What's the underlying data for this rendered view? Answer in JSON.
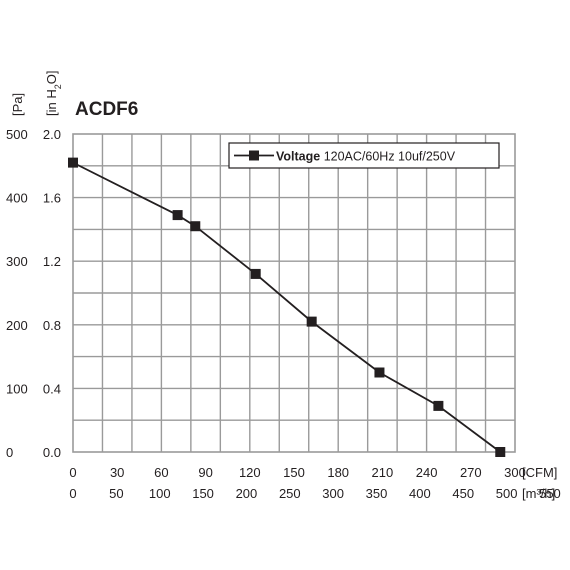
{
  "chart_data": {
    "type": "line",
    "title": "ACDF6",
    "y_units": {
      "primary": "[Pa]",
      "secondary": "[in H",
      "secondary_sub": "2",
      "secondary_end": "O]"
    },
    "x_units": {
      "primary": "[CFM]",
      "secondary": "[m³/h]"
    },
    "x_cfm_ticks": [
      "0",
      "30",
      "60",
      "90",
      "120",
      "150",
      "180",
      "210",
      "240",
      "270",
      "300"
    ],
    "x_m3h_ticks": [
      "0",
      "50",
      "100",
      "150",
      "200",
      "250",
      "300",
      "350",
      "400",
      "450",
      "500",
      "550"
    ],
    "y_pa_ticks": [
      "0",
      "100",
      "200",
      "300",
      "400",
      "500"
    ],
    "y_inh2o_ticks": [
      "0.0",
      "0.4",
      "0.8",
      "1.2",
      "1.6",
      "2.0"
    ],
    "xlim_cfm": [
      0,
      300
    ],
    "ylim_inh2o": [
      0,
      2.0
    ],
    "grid": true,
    "legend_position": "top-right",
    "series": [
      {
        "name_bold": "Voltage",
        "name_rest": "120AC/60Hz 10uf/250V",
        "color": "#231f20",
        "marker": "square",
        "x": [
          0,
          71,
          83,
          124,
          162,
          208,
          248,
          290
        ],
        "y": [
          1.82,
          1.49,
          1.42,
          1.12,
          0.82,
          0.5,
          0.29,
          0.0
        ]
      }
    ],
    "colors": {
      "grid": "#9a9a9a",
      "line": "#231f20",
      "text": "#231f20",
      "background": "#ffffff"
    }
  }
}
